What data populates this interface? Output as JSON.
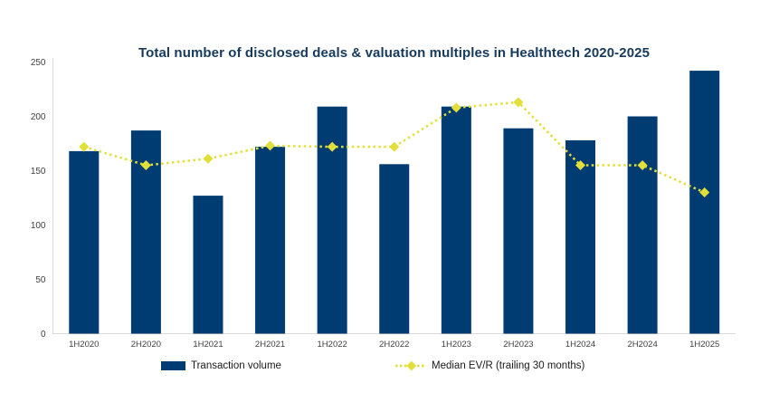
{
  "chart_data": {
    "type": "bar",
    "subtype": "combo-bar-line",
    "title": "Total number of disclosed deals & valuation multiples in Healthtech 2020-2025",
    "categories": [
      "1H2020",
      "2H2020",
      "1H2021",
      "2H2021",
      "1H2022",
      "2H2022",
      "1H2023",
      "2H2023",
      "1H2024",
      "2H2024",
      "1H2025"
    ],
    "series": [
      {
        "name": "Transaction volume",
        "type": "bar",
        "color": "#003C71",
        "values": [
          168,
          187,
          127,
          172,
          209,
          156,
          209,
          189,
          178,
          200,
          242
        ]
      },
      {
        "name": "Median EV/R (trailing 30 months)",
        "type": "line",
        "line_style": "dotted",
        "marker": "diamond",
        "color": "#E2DF3A",
        "values": [
          172,
          155,
          161,
          173,
          172,
          172,
          208,
          213,
          155,
          155,
          130
        ]
      }
    ],
    "xlabel": "",
    "ylabel": "",
    "ylim": [
      0,
      250
    ],
    "yticks": [
      0,
      50,
      100,
      150,
      200,
      250
    ],
    "grid": false,
    "legend_position": "bottom"
  },
  "legend": {
    "bar_label": "Transaction volume",
    "line_label": "Median EV/R (trailing 30 months)"
  },
  "colors": {
    "bar": "#003C71",
    "line": "#E2DF3A",
    "title": "#163A5E",
    "axis_text": "#404040",
    "axis_line": "#D9D9D9",
    "background": "#ffffff"
  }
}
